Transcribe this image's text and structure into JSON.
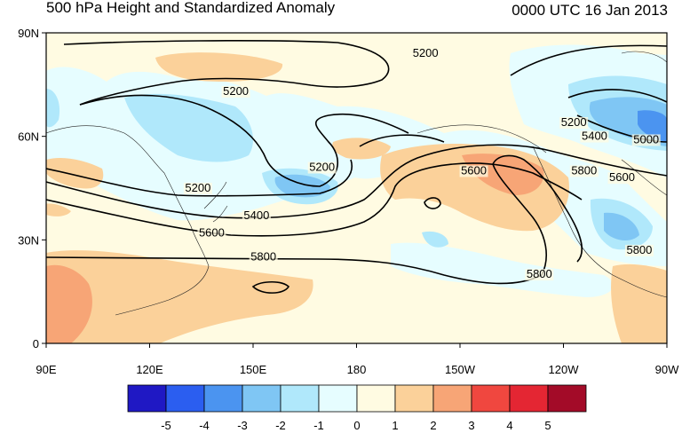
{
  "title": "500 hPa Height and Standardized Anomaly",
  "valid_time": "0000 UTC 16 Jan 2013",
  "axes": {
    "lon_ticks": [
      "90E",
      "120E",
      "150E",
      "180",
      "150W",
      "120W",
      "90W"
    ],
    "lat_ticks": [
      "90N",
      "60N",
      "30N",
      "0"
    ]
  },
  "contour_labels": [
    {
      "text": "5200",
      "lon": 145,
      "lat": 72
    },
    {
      "text": "5200",
      "lon": 200,
      "lat": 83
    },
    {
      "text": "5200",
      "lon": 134,
      "lat": 44
    },
    {
      "text": "5200",
      "lon": 170,
      "lat": 50
    },
    {
      "text": "5200",
      "lon": 243,
      "lat": 63
    },
    {
      "text": "5000",
      "lon": 264,
      "lat": 58
    },
    {
      "text": "5400",
      "lon": 151,
      "lat": 36
    },
    {
      "text": "5400",
      "lon": 249,
      "lat": 59
    },
    {
      "text": "5600",
      "lon": 138,
      "lat": 31
    },
    {
      "text": "5600",
      "lon": 214,
      "lat": 49
    },
    {
      "text": "5600",
      "lon": 257,
      "lat": 47
    },
    {
      "text": "5800",
      "lon": 153,
      "lat": 24
    },
    {
      "text": "5800",
      "lon": 246,
      "lat": 49
    },
    {
      "text": "5800",
      "lon": 233,
      "lat": 19
    },
    {
      "text": "5800",
      "lon": 262,
      "lat": 26
    }
  ],
  "colorbar": {
    "labels": [
      "-5",
      "-4",
      "-3",
      "-2",
      "-1",
      "0",
      "1",
      "2",
      "3",
      "4",
      "5"
    ],
    "colors": [
      "#1f18c4",
      "#2b5ef0",
      "#4b94f0",
      "#7fc6f4",
      "#b0e8fb",
      "#e6fdff",
      "#fffbe2",
      "#fbd19a",
      "#f7a576",
      "#f0473f",
      "#e42633",
      "#a30b28"
    ]
  },
  "colors": {
    "background": "#fffbe2",
    "contour": "#000000",
    "coast": "#222222"
  }
}
